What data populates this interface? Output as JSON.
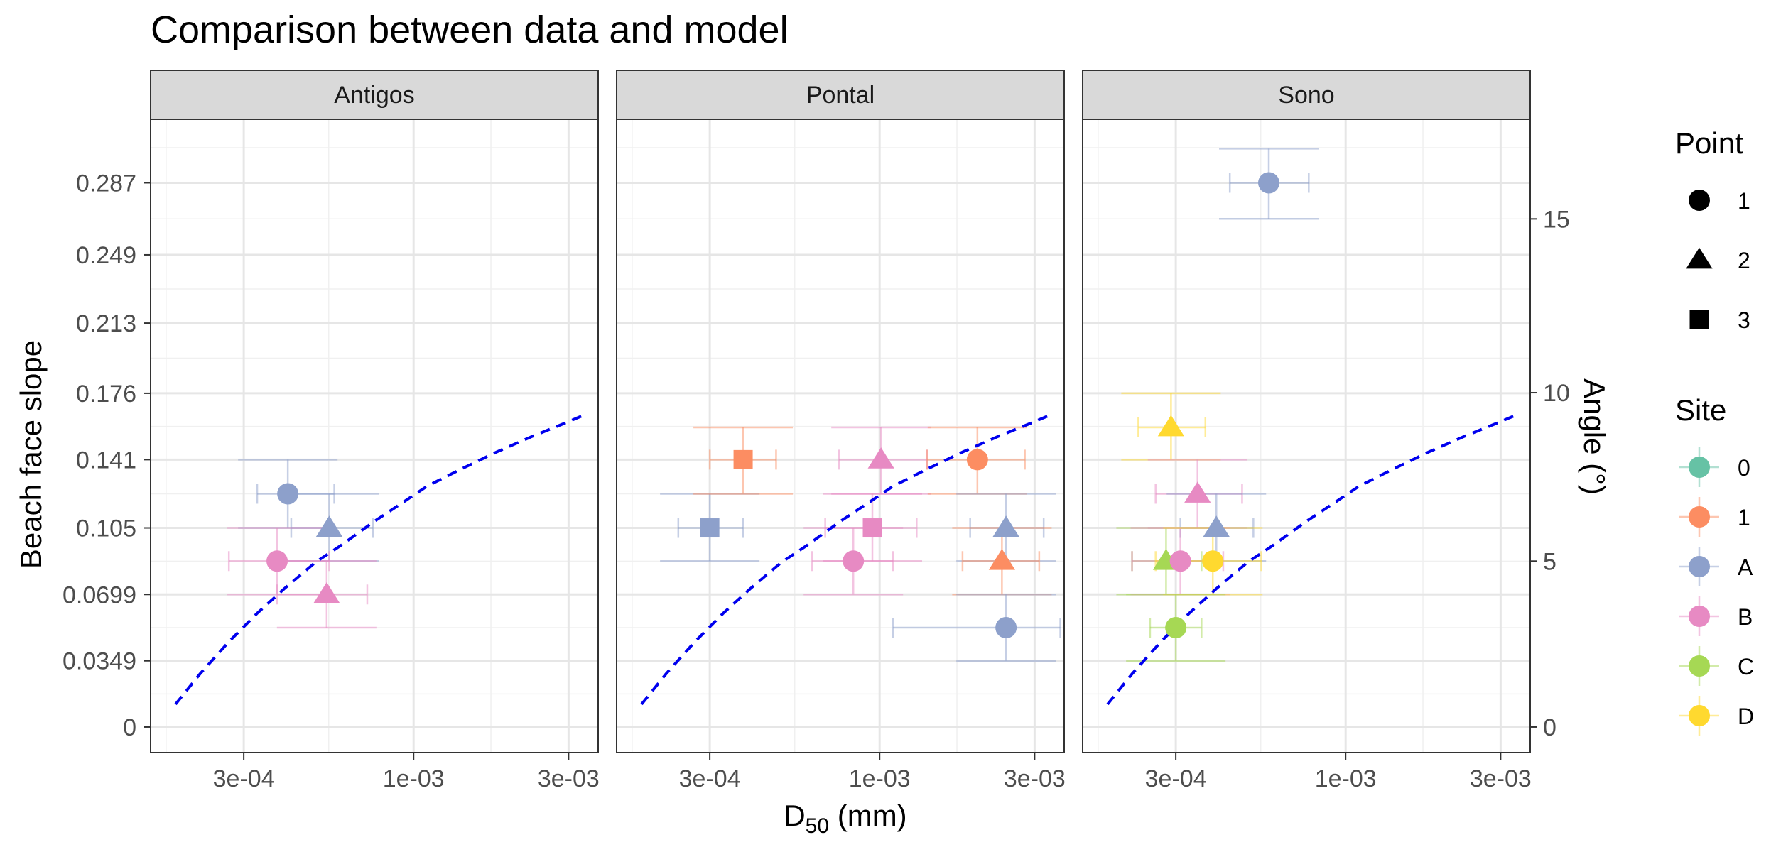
{
  "chart_data": {
    "type": "scatter",
    "title": "Comparison between data and model",
    "xlabel": "D",
    "xlabel_sub": "50",
    "xlabel_unit": " (mm)",
    "ylabel": "Beach face slope",
    "y2label": "Angle (°)",
    "x_scale": "log10",
    "xlim": [
      0.000155,
      0.0037
    ],
    "ylim": [
      -0.0135,
      0.3205
    ],
    "x_ticks": [
      0.0003,
      0.001,
      0.003
    ],
    "x_tick_labels": [
      "3e-04",
      "1e-03",
      "3e-03"
    ],
    "y_ticks": [
      0,
      0.0349,
      0.0699,
      0.105,
      0.141,
      0.176,
      0.213,
      0.249,
      0.287
    ],
    "y_tick_labels": [
      "0",
      "0.0349",
      "0.0699",
      "0.105",
      "0.141",
      "0.176",
      "0.213",
      "0.249",
      "0.287"
    ],
    "y2_ticks": [
      0,
      5,
      10,
      15
    ],
    "y2_tick_labels": [
      "0",
      "5",
      "10",
      "15"
    ],
    "grid": true,
    "legend_position": "right",
    "model_curve": {
      "color": "#0000ee",
      "style": "dashed",
      "points": [
        [
          0.000185,
          0.012
        ],
        [
          0.00022,
          0.028
        ],
        [
          0.00027,
          0.045
        ],
        [
          0.00033,
          0.06
        ],
        [
          0.0004,
          0.073
        ],
        [
          0.0005,
          0.087
        ],
        [
          0.0006,
          0.096
        ],
        [
          0.00075,
          0.108
        ],
        [
          0.0009,
          0.117
        ],
        [
          0.0011,
          0.127
        ],
        [
          0.0014,
          0.136
        ],
        [
          0.0018,
          0.145
        ],
        [
          0.0023,
          0.153
        ],
        [
          0.0029,
          0.16
        ],
        [
          0.0034,
          0.165
        ]
      ]
    },
    "point_legend": {
      "title": "Point",
      "items": [
        {
          "label": "1",
          "shape": "circle"
        },
        {
          "label": "2",
          "shape": "triangle"
        },
        {
          "label": "3",
          "shape": "square"
        }
      ]
    },
    "site_legend": {
      "title": "Site",
      "items": [
        {
          "label": "0",
          "color": "#66c2a5"
        },
        {
          "label": "1",
          "color": "#fc8d62"
        },
        {
          "label": "A",
          "color": "#8da0cb"
        },
        {
          "label": "B",
          "color": "#e78ac3"
        },
        {
          "label": "C",
          "color": "#a6d854"
        },
        {
          "label": "D",
          "color": "#ffd92f"
        }
      ]
    },
    "panels": [
      {
        "name": "Antigos",
        "points": [
          {
            "site": "A",
            "point": "1",
            "x": 0.00041,
            "y": 0.123,
            "xerr": [
              0.00033,
              0.00057
            ],
            "yerr": [
              0.105,
              0.141
            ]
          },
          {
            "site": "A",
            "point": "2",
            "x": 0.00055,
            "y": 0.105,
            "xerr": [
              0.00042,
              0.00075
            ],
            "yerr": [
              0.0875,
              0.123
            ]
          },
          {
            "site": "B",
            "point": "1",
            "x": 0.00038,
            "y": 0.0875,
            "xerr": [
              0.00027,
              0.00055
            ],
            "yerr": [
              0.0699,
              0.105
            ]
          },
          {
            "site": "B",
            "point": "2",
            "x": 0.00054,
            "y": 0.0699,
            "xerr": [
              0.00038,
              0.00072
            ],
            "yerr": [
              0.0524,
              0.0875
            ]
          }
        ]
      },
      {
        "name": "Pontal",
        "points": [
          {
            "site": "A",
            "point": "3",
            "x": 0.0003,
            "y": 0.105,
            "xerr": [
              0.00024,
              0.00038
            ],
            "yerr": [
              0.0875,
              0.123
            ]
          },
          {
            "site": "1",
            "point": "3",
            "x": 0.00038,
            "y": 0.141,
            "xerr": [
              0.0003,
              0.00048
            ],
            "yerr": [
              0.123,
              0.158
            ]
          },
          {
            "site": "B",
            "point": "1",
            "x": 0.00083,
            "y": 0.0875,
            "xerr": [
              0.00062,
              0.0011
            ],
            "yerr": [
              0.0699,
              0.105
            ]
          },
          {
            "site": "B",
            "point": "3",
            "x": 0.00095,
            "y": 0.105,
            "xerr": [
              0.00068,
              0.0013
            ],
            "yerr": [
              0.0875,
              0.123
            ]
          },
          {
            "site": "B",
            "point": "2",
            "x": 0.00101,
            "y": 0.141,
            "xerr": [
              0.00075,
              0.0014
            ],
            "yerr": [
              0.123,
              0.158
            ]
          },
          {
            "site": "1",
            "point": "1",
            "x": 0.002,
            "y": 0.141,
            "xerr": [
              0.0014,
              0.0028
            ],
            "yerr": [
              0.123,
              0.158
            ]
          },
          {
            "site": "A",
            "point": "2",
            "x": 0.00245,
            "y": 0.105,
            "xerr": [
              0.0019,
              0.0032
            ],
            "yerr": [
              0.0875,
              0.123
            ]
          },
          {
            "site": "1",
            "point": "2",
            "x": 0.00238,
            "y": 0.0875,
            "xerr": [
              0.0018,
              0.0031
            ],
            "yerr": [
              0.0699,
              0.105
            ]
          },
          {
            "site": "A",
            "point": "1",
            "x": 0.00245,
            "y": 0.0524,
            "xerr": [
              0.0011,
              0.0036
            ],
            "yerr": [
              0.0349,
              0.0699
            ]
          }
        ]
      },
      {
        "name": "Sono",
        "points": [
          {
            "site": "A",
            "point": "1",
            "x": 0.00058,
            "y": 0.287,
            "xerr": [
              0.00044,
              0.00077
            ],
            "yerr": [
              0.268,
              0.305
            ]
          },
          {
            "site": "D",
            "point": "2",
            "x": 0.00029,
            "y": 0.158,
            "xerr": [
              0.00023,
              0.00037
            ],
            "yerr": [
              0.141,
              0.176
            ]
          },
          {
            "site": "B",
            "point": "2",
            "x": 0.00035,
            "y": 0.123,
            "xerr": [
              0.00026,
              0.00048
            ],
            "yerr": [
              0.105,
              0.141
            ]
          },
          {
            "site": "A",
            "point": "2",
            "x": 0.0004,
            "y": 0.105,
            "xerr": [
              0.00031,
              0.00052
            ],
            "yerr": [
              0.0875,
              0.123
            ]
          },
          {
            "site": "C",
            "point": "2",
            "x": 0.00028,
            "y": 0.0875,
            "xerr": [
              0.00022,
              0.00036
            ],
            "yerr": [
              0.0699,
              0.105
            ]
          },
          {
            "site": "B",
            "point": "1",
            "x": 0.00031,
            "y": 0.0875,
            "xerr": [
              0.00022,
              0.00042
            ],
            "yerr": [
              0.0699,
              0.105
            ]
          },
          {
            "site": "D",
            "point": "1",
            "x": 0.00039,
            "y": 0.0875,
            "xerr": [
              0.00026,
              0.00055
            ],
            "yerr": [
              0.0699,
              0.105
            ]
          },
          {
            "site": "C",
            "point": "1",
            "x": 0.0003,
            "y": 0.0524,
            "xerr": [
              0.00025,
              0.00036
            ],
            "yerr": [
              0.0349,
              0.0699
            ]
          }
        ]
      }
    ]
  }
}
